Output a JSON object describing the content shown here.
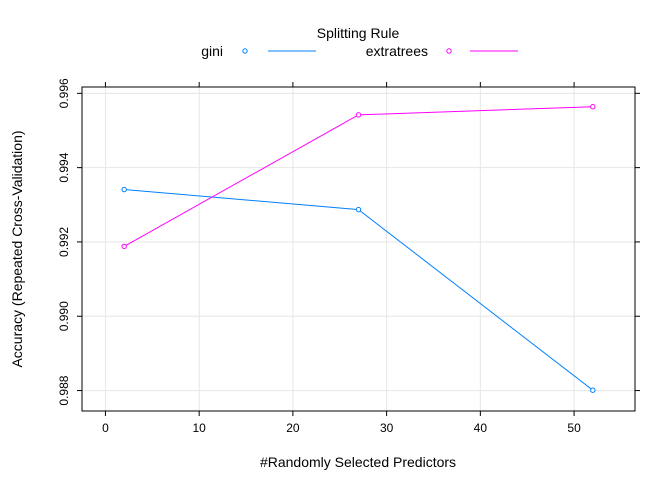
{
  "chart_data": {
    "type": "line",
    "title": "",
    "legend": {
      "title": "Splitting Rule",
      "placement": "top",
      "entries": [
        "gini",
        "extratrees"
      ]
    },
    "xlabel": "#Randomly Selected Predictors",
    "ylabel": "Accuracy (Repeated Cross-Validation)",
    "xlim": [
      -2.5,
      56.5
    ],
    "ylim": [
      0.98745,
      0.99617
    ],
    "xticks": [
      0,
      10,
      20,
      30,
      40,
      50
    ],
    "xtick_labels": [
      "0",
      "10",
      "20",
      "30",
      "40",
      "50"
    ],
    "yticks": [
      0.988,
      0.99,
      0.992,
      0.994,
      0.996
    ],
    "ytick_labels": [
      "0.988",
      "0.990",
      "0.992",
      "0.994",
      "0.996"
    ],
    "grid": true,
    "x": [
      2,
      27,
      52
    ],
    "series": [
      {
        "name": "gini",
        "values": [
          0.99341,
          0.99287,
          0.98801
        ],
        "color": "#0080ff"
      },
      {
        "name": "extratrees",
        "values": [
          0.99188,
          0.99542,
          0.99564
        ],
        "color": "#ff00ff"
      }
    ]
  }
}
